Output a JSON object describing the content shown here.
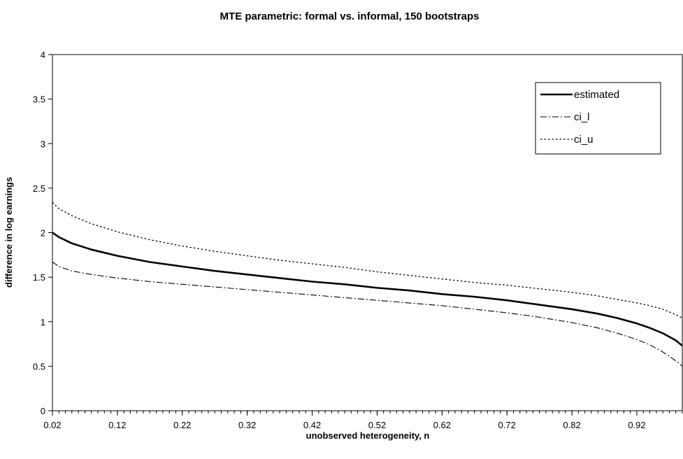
{
  "chart_data": {
    "type": "line",
    "title": "MTE parametric: formal vs. informal, 150 bootstraps",
    "xlabel": "unobserved heterogeneity, n",
    "ylabel": "difference in log earnings",
    "xlim": [
      0.02,
      0.99
    ],
    "ylim": [
      0,
      4
    ],
    "x_ticks": [
      0.02,
      0.12,
      0.22,
      0.32,
      0.42,
      0.52,
      0.62,
      0.72,
      0.82,
      0.92
    ],
    "x_tick_labels": [
      "0.02",
      "0.12",
      "0.22",
      "0.32",
      "0.42",
      "0.52",
      "0.62",
      "0.72",
      "0.82",
      "0.92"
    ],
    "y_ticks": [
      0,
      0.5,
      1,
      1.5,
      2,
      2.5,
      3,
      3.5,
      4
    ],
    "y_tick_labels": [
      "0",
      "0.5",
      "1",
      "1.5",
      "2",
      "2.5",
      "3",
      "3.5",
      "4"
    ],
    "x_minor_step": 0.01,
    "grid": false,
    "legend_position": "top-right",
    "x": [
      0.02,
      0.03,
      0.05,
      0.08,
      0.12,
      0.17,
      0.22,
      0.27,
      0.32,
      0.37,
      0.42,
      0.47,
      0.52,
      0.57,
      0.62,
      0.67,
      0.72,
      0.77,
      0.82,
      0.86,
      0.89,
      0.92,
      0.94,
      0.96,
      0.97,
      0.98,
      0.99
    ],
    "series": [
      {
        "name": "estimated",
        "style": "solid",
        "color": "#000000",
        "values": [
          2.0,
          1.95,
          1.88,
          1.81,
          1.74,
          1.67,
          1.62,
          1.57,
          1.53,
          1.49,
          1.45,
          1.42,
          1.38,
          1.35,
          1.31,
          1.28,
          1.24,
          1.19,
          1.14,
          1.09,
          1.04,
          0.98,
          0.93,
          0.87,
          0.83,
          0.79,
          0.73
        ]
      },
      {
        "name": "ci_l",
        "style": "dashdot",
        "color": "#000000",
        "values": [
          1.67,
          1.62,
          1.57,
          1.53,
          1.49,
          1.45,
          1.42,
          1.39,
          1.36,
          1.33,
          1.3,
          1.27,
          1.24,
          1.21,
          1.18,
          1.14,
          1.1,
          1.05,
          0.99,
          0.93,
          0.87,
          0.8,
          0.74,
          0.66,
          0.61,
          0.56,
          0.5
        ]
      },
      {
        "name": "ci_u",
        "style": "dotted",
        "color": "#000000",
        "values": [
          2.34,
          2.27,
          2.19,
          2.1,
          2.01,
          1.92,
          1.85,
          1.79,
          1.74,
          1.69,
          1.65,
          1.61,
          1.56,
          1.52,
          1.48,
          1.44,
          1.41,
          1.37,
          1.33,
          1.29,
          1.25,
          1.21,
          1.18,
          1.14,
          1.11,
          1.08,
          1.04
        ]
      }
    ]
  }
}
